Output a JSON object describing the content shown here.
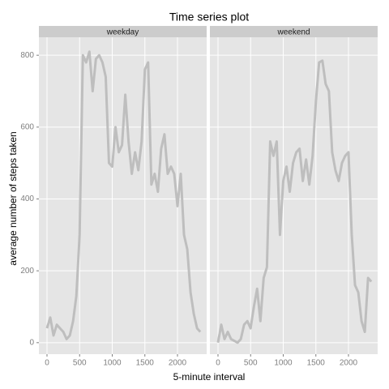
{
  "chart_data": {
    "type": "line",
    "title": "Time series plot",
    "xlabel": "5-minute interval",
    "ylabel": "average number of steps taken",
    "color": "#bebebe",
    "grid": true,
    "xlim": [
      -124,
      2447
    ],
    "ylim": [
      -32,
      850
    ],
    "xticks": [
      0,
      500,
      1000,
      1500,
      2000
    ],
    "yticks": [
      0,
      200,
      400,
      600,
      800
    ],
    "x": [
      0,
      50,
      100,
      150,
      200,
      250,
      300,
      350,
      400,
      450,
      500,
      550,
      600,
      650,
      700,
      750,
      800,
      850,
      900,
      950,
      1000,
      1050,
      1100,
      1150,
      1200,
      1250,
      1300,
      1350,
      1400,
      1450,
      1500,
      1550,
      1600,
      1650,
      1700,
      1750,
      1800,
      1850,
      1900,
      1950,
      2000,
      2050,
      2100,
      2150,
      2200,
      2250,
      2300,
      2350
    ],
    "panels": [
      {
        "name": "weekday",
        "values": [
          40,
          70,
          20,
          50,
          40,
          30,
          10,
          20,
          60,
          130,
          300,
          800,
          780,
          810,
          700,
          790,
          800,
          780,
          740,
          500,
          490,
          600,
          530,
          550,
          690,
          560,
          470,
          530,
          480,
          560,
          760,
          780,
          440,
          470,
          420,
          540,
          580,
          470,
          490,
          470,
          380,
          470,
          300,
          260,
          140,
          80,
          40,
          30
        ]
      },
      {
        "name": "weekend",
        "values": [
          0,
          50,
          10,
          30,
          10,
          5,
          0,
          10,
          50,
          60,
          40,
          100,
          150,
          60,
          180,
          210,
          560,
          520,
          560,
          300,
          450,
          490,
          420,
          500,
          530,
          540,
          450,
          510,
          440,
          520,
          670,
          780,
          785,
          720,
          700,
          530,
          480,
          450,
          500,
          520,
          530,
          300,
          160,
          140,
          60,
          30,
          180,
          170
        ]
      }
    ]
  }
}
